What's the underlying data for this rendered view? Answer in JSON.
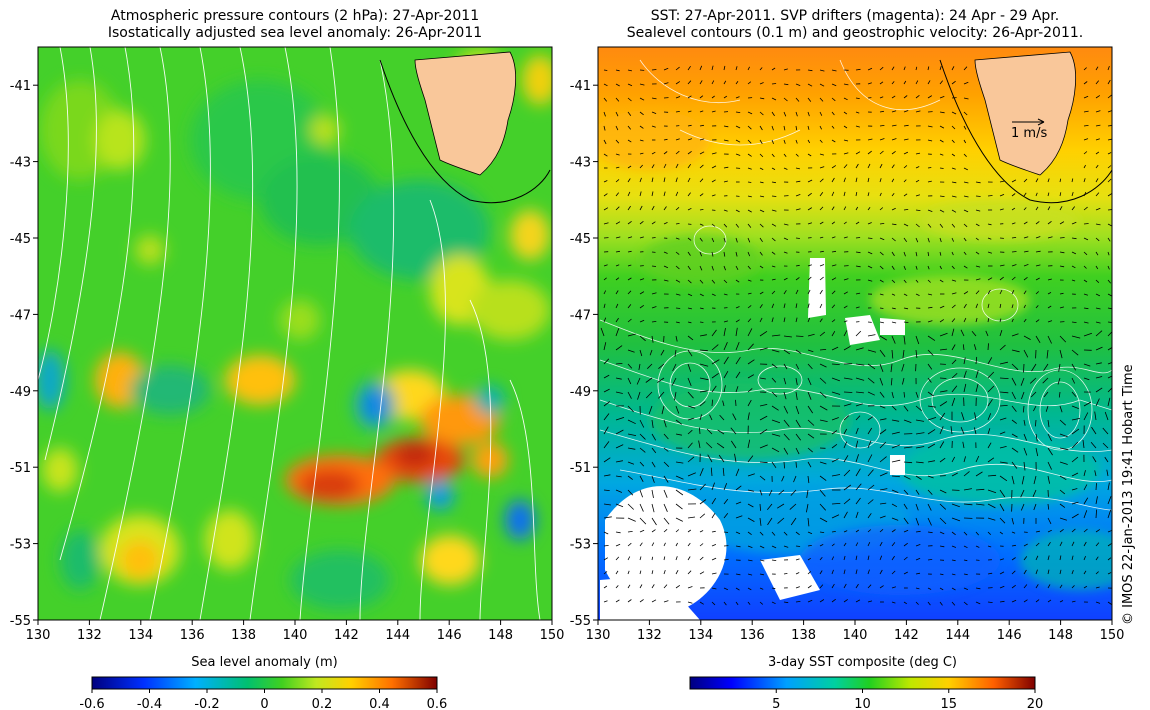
{
  "left_panel": {
    "title_line1": "Atmospheric pressure contours (2 hPa): 27-Apr-2011",
    "title_line2": "Isostatically adjusted sea level anomaly: 26-Apr-2011",
    "colorbar_label": "Sea level anomaly (m)",
    "colorbar_ticks": [
      "-0.6",
      "-0.4",
      "-0.2",
      "0",
      "0.2",
      "0.4",
      "0.6"
    ]
  },
  "right_panel": {
    "title_line1": "SST: 27-Apr-2011. SVP drifters (magenta): 24 Apr - 29 Apr.",
    "title_line2": "Sealevel contours (0.1 m) and geostrophic velocity: 26-Apr-2011.",
    "colorbar_label": "3-day SST composite (deg C)",
    "colorbar_ticks": [
      "5",
      "10",
      "15",
      "20"
    ],
    "scale_arrow_label": "1 m/s"
  },
  "axes": {
    "x_ticks": [
      "130",
      "132",
      "134",
      "136",
      "138",
      "140",
      "142",
      "144",
      "146",
      "148",
      "150"
    ],
    "y_ticks": [
      "-41",
      "-43",
      "-45",
      "-47",
      "-49",
      "-51",
      "-53",
      "-55"
    ],
    "lon_range": [
      130,
      150
    ],
    "lat_range": [
      -55,
      -40
    ]
  },
  "credit": "© IMOS 22-Jan-2013 19:41 Hobart Time",
  "colors": {
    "land": "#f9c79a",
    "sla_scale": [
      "#00007f",
      "#0040ff",
      "#00b0ff",
      "#20c060",
      "#40d020",
      "#c0e820",
      "#ffd000",
      "#ff8000",
      "#c00000",
      "#7f0000"
    ],
    "sst_scale": [
      "#00007f",
      "#0000ff",
      "#00a0ff",
      "#00d0a0",
      "#20d020",
      "#a0e000",
      "#ffe000",
      "#ff8000",
      "#e02000",
      "#7f0000"
    ]
  }
}
